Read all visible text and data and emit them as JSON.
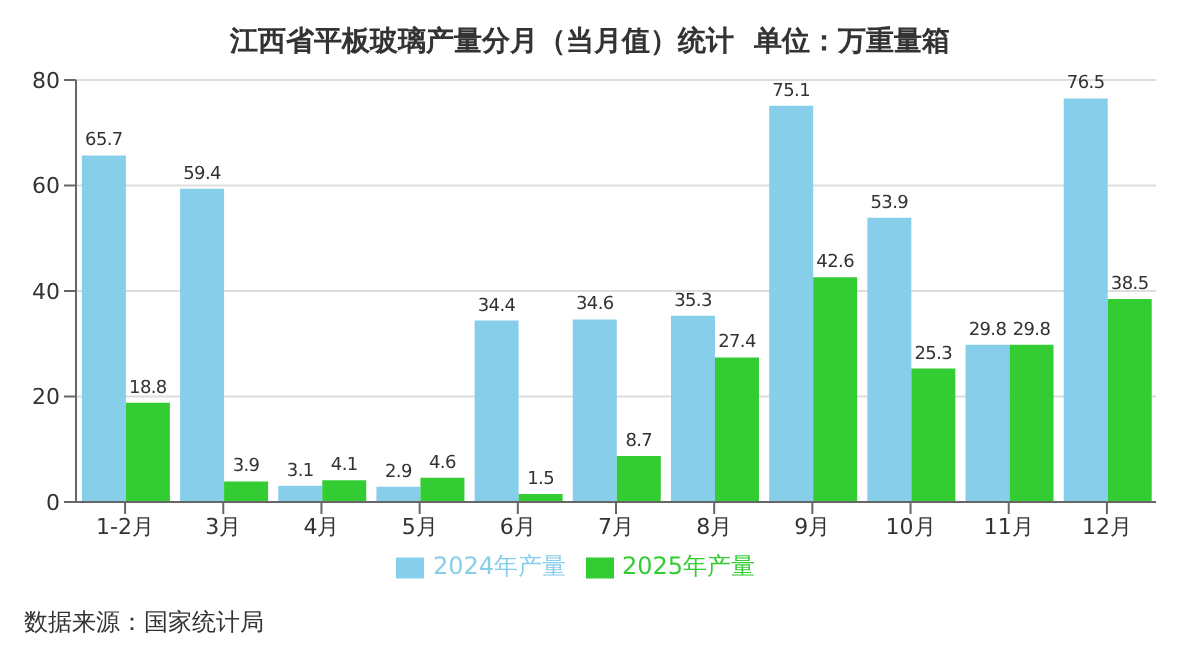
{
  "chart_data": {
    "type": "bar",
    "title": "江西省平板玻璃产量分月（当月值）统计  单位：万重量箱",
    "categories": [
      "1-2月",
      "3月",
      "4月",
      "5月",
      "6月",
      "7月",
      "8月",
      "9月",
      "10月",
      "11月",
      "12月"
    ],
    "series": [
      {
        "name": "2024年产量",
        "color": "#87ceeb",
        "values": [
          65.7,
          59.4,
          3.1,
          2.9,
          34.4,
          34.6,
          35.3,
          75.1,
          53.9,
          29.8,
          76.5
        ]
      },
      {
        "name": "2025年产量",
        "color": "#33cc33",
        "values": [
          18.8,
          3.9,
          4.1,
          4.6,
          1.5,
          8.7,
          27.4,
          42.6,
          25.3,
          29.8,
          38.5
        ]
      }
    ],
    "ylim": [
      0,
      80
    ],
    "yticks": [
      0,
      20,
      40,
      60,
      80
    ],
    "grid": "y",
    "legend": "bottom",
    "data_labels": true,
    "annotations": [
      "数据来源：国家统计局"
    ]
  }
}
